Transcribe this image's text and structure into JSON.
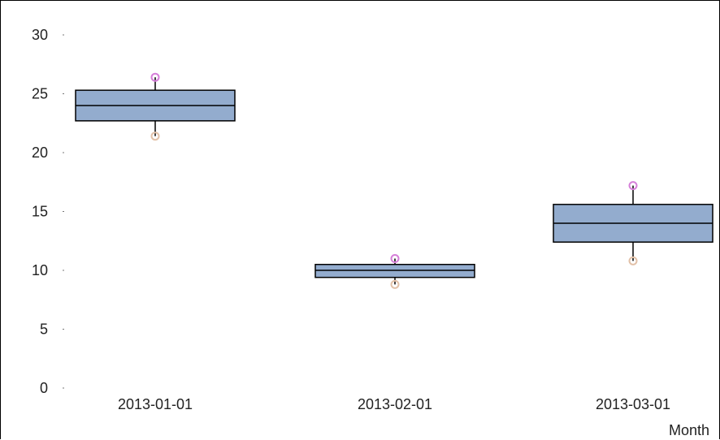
{
  "chart_data": {
    "type": "box",
    "title": "",
    "xlabel": "Month",
    "ylabel": "",
    "ylim": [
      0,
      30
    ],
    "yticks": [
      0,
      5,
      10,
      15,
      20,
      25,
      30
    ],
    "grid": false,
    "categories": [
      "2013-01-01",
      "2013-02-01",
      "2013-03-01"
    ],
    "boxes": [
      {
        "category": "2013-01-01",
        "min": 21.4,
        "q1": 22.7,
        "median": 24.0,
        "q3": 25.3,
        "max": 26.4
      },
      {
        "category": "2013-02-01",
        "min": 8.8,
        "q1": 9.4,
        "median": 10.0,
        "q3": 10.5,
        "max": 11.0
      },
      {
        "category": "2013-03-01",
        "min": 10.8,
        "q1": 12.4,
        "median": 14.0,
        "q3": 15.6,
        "max": 17.2
      }
    ],
    "colors": {
      "box_fill": "#93acce",
      "box_stroke": "#000000",
      "max_marker": "#d67fd9",
      "min_marker": "#e2c1a8"
    }
  }
}
